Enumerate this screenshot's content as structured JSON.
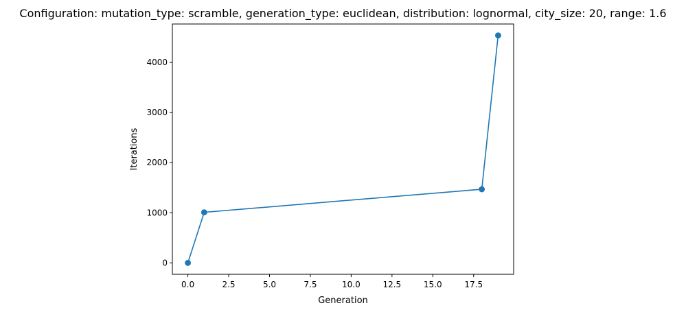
{
  "chart_data": {
    "type": "line",
    "title": "Configuration: mutation_type: scramble, generation_type: euclidean, distribution: lognormal, city_size: 20, range: 1.6",
    "xlabel": "Generation",
    "ylabel": "Iterations",
    "x": [
      0,
      1,
      18,
      19
    ],
    "series": [
      {
        "values": [
          0,
          1010,
          1470,
          4540
        ],
        "color": "#1f77b4",
        "marker": "circle"
      }
    ],
    "xlim": [
      -0.95,
      19.95
    ],
    "ylim": [
      -227,
      4767
    ],
    "x_ticks": [
      0,
      2.5,
      5,
      7.5,
      10,
      12.5,
      15,
      17.5
    ],
    "x_tick_labels": [
      "0.0",
      "2.5",
      "5.0",
      "7.5",
      "10.0",
      "12.5",
      "15.0",
      "17.5"
    ],
    "y_ticks": [
      0,
      1000,
      2000,
      3000,
      4000
    ],
    "y_tick_labels": [
      "0",
      "1000",
      "2000",
      "3000",
      "4000"
    ],
    "grid": false,
    "legend": "none"
  }
}
